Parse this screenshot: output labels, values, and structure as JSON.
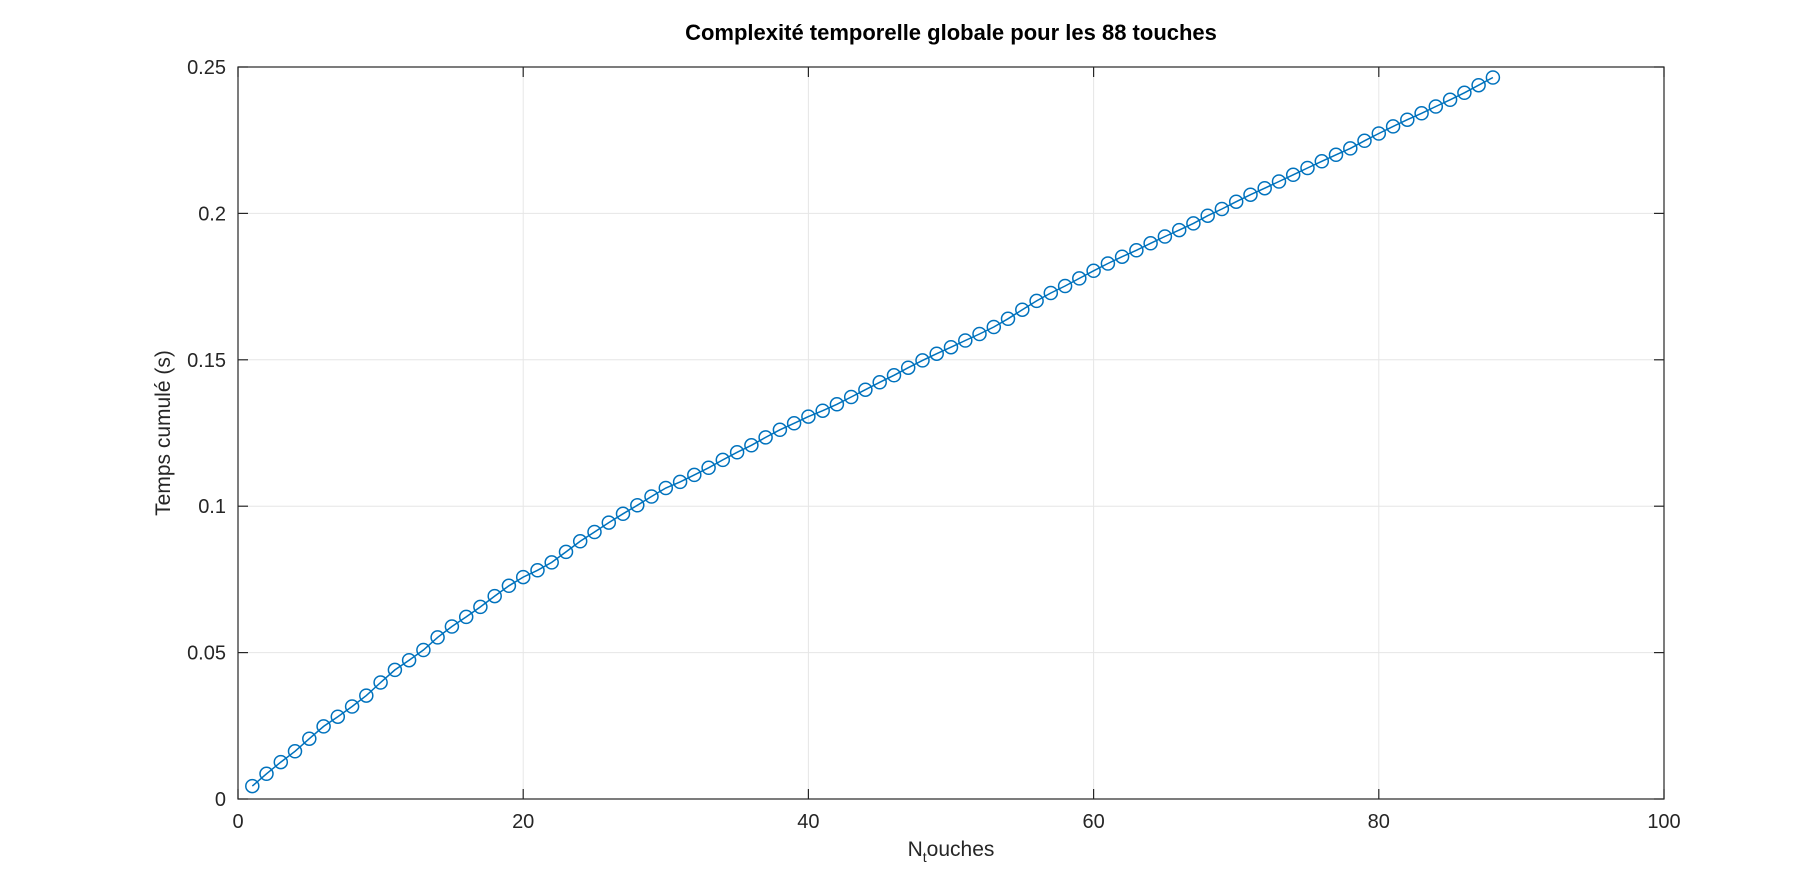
{
  "chart_data": {
    "type": "line",
    "title": "Complexité temporelle globale pour les 88 touches",
    "xlabel_main": "N",
    "xlabel_sub": "t",
    "xlabel_rest": "ouches",
    "ylabel": "Temps cumulé (s)",
    "xlim": [
      0,
      100
    ],
    "ylim": [
      0,
      0.25
    ],
    "xticks": [
      0,
      20,
      40,
      60,
      80,
      100
    ],
    "xtick_labels": [
      "0",
      "20",
      "40",
      "60",
      "80",
      "100"
    ],
    "yticks": [
      0,
      0.05,
      0.1,
      0.15,
      0.2,
      0.25
    ],
    "ytick_labels": [
      "0",
      "0.05",
      "0.1",
      "0.15",
      "0.2",
      "0.25"
    ],
    "grid": true,
    "marker": "circle",
    "color": "#0072BD",
    "x": [
      1,
      2,
      3,
      4,
      5,
      6,
      7,
      8,
      9,
      10,
      11,
      12,
      13,
      14,
      15,
      16,
      17,
      18,
      19,
      20,
      21,
      22,
      23,
      24,
      25,
      26,
      27,
      28,
      29,
      30,
      31,
      32,
      33,
      34,
      35,
      36,
      37,
      38,
      39,
      40,
      41,
      42,
      43,
      44,
      45,
      46,
      47,
      48,
      49,
      50,
      51,
      52,
      53,
      54,
      55,
      56,
      57,
      58,
      59,
      60,
      61,
      62,
      63,
      64,
      65,
      66,
      67,
      68,
      69,
      70,
      71,
      72,
      73,
      74,
      75,
      76,
      77,
      78,
      79,
      80,
      81,
      82,
      83,
      84,
      85,
      86,
      87,
      88
    ],
    "y": [
      0.0044,
      0.0086,
      0.0126,
      0.0163,
      0.0206,
      0.0248,
      0.0281,
      0.0316,
      0.0353,
      0.0398,
      0.0441,
      0.0474,
      0.0509,
      0.0552,
      0.0589,
      0.0622,
      0.0656,
      0.0693,
      0.0728,
      0.0758,
      0.0781,
      0.0808,
      0.0844,
      0.088,
      0.0912,
      0.0944,
      0.0974,
      0.1003,
      0.1033,
      0.1062,
      0.1083,
      0.1107,
      0.1131,
      0.1158,
      0.1184,
      0.1208,
      0.1235,
      0.1261,
      0.1283,
      0.1306,
      0.1326,
      0.1348,
      0.1373,
      0.1398,
      0.1423,
      0.1447,
      0.1473,
      0.1498,
      0.1521,
      0.1543,
      0.1566,
      0.1588,
      0.1612,
      0.164,
      0.1671,
      0.1701,
      0.1728,
      0.1752,
      0.1778,
      0.1804,
      0.1829,
      0.1852,
      0.1874,
      0.1898,
      0.1921,
      0.1943,
      0.1966,
      0.1992,
      0.2015,
      0.204,
      0.2064,
      0.2086,
      0.2109,
      0.2132,
      0.2155,
      0.2178,
      0.22,
      0.2222,
      0.2248,
      0.2273,
      0.2297,
      0.232,
      0.2342,
      0.2365,
      0.2388,
      0.2412,
      0.2438,
      0.2464
    ]
  }
}
